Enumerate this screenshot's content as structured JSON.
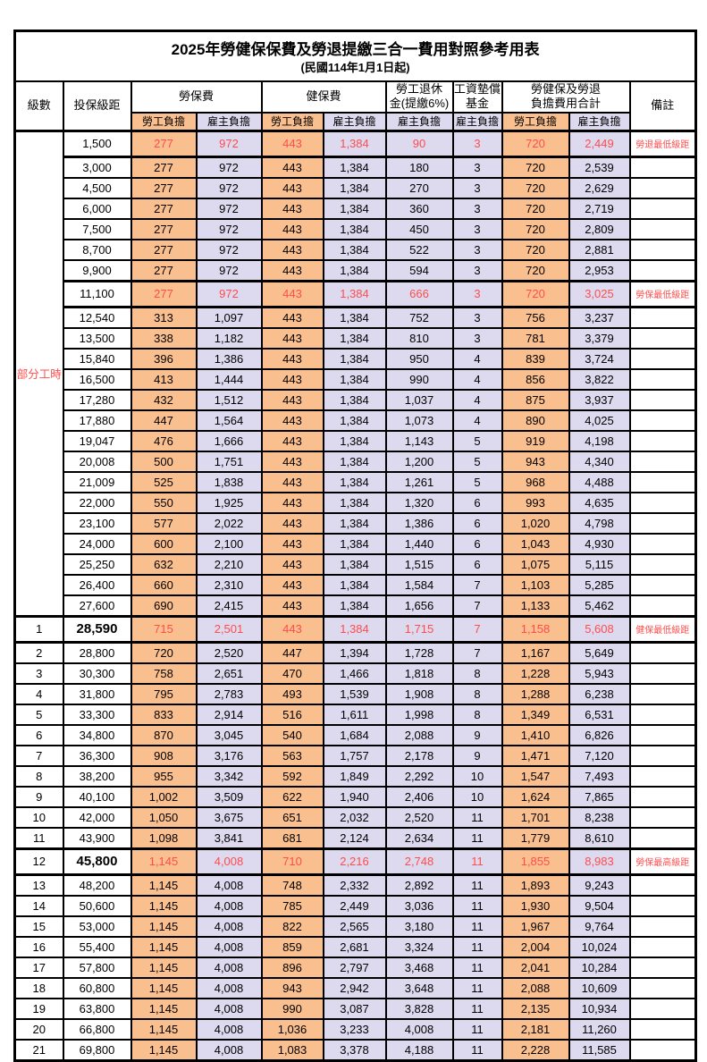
{
  "title": "2025年勞健保保費及勞退提繳三合一費用對照參考用表",
  "subtitle": "(民國114年1月1日起)",
  "header": {
    "level": "級數",
    "bracket": "投保級距",
    "labor_fee": "勞保費",
    "health_fee": "健保費",
    "pension_line1": "勞工退休",
    "pension_line2": "金(提繳6%)",
    "wage_fund_line1": "工資墊償",
    "wage_fund_line2": "基金",
    "total_line1": "勞健保及勞退",
    "total_line2": "負擔費用合計",
    "remark": "備註",
    "employee_burden": "勞工負擔",
    "employer_burden": "雇主負擔"
  },
  "part_time_label": "部分工時",
  "part_time_rowspan": 23,
  "colors": {
    "employee_bg": "#FABF8F",
    "employer_bg": "#DDD9EE",
    "highlight_text": "#FF4D4D",
    "border": "#000000"
  },
  "rows": [
    {
      "level": "",
      "bracket": "1,500",
      "l_emp": "277",
      "l_er": "972",
      "h_emp": "443",
      "h_er": "1,384",
      "pension": "90",
      "fund": "3",
      "t_emp": "720",
      "t_er": "2,449",
      "remark": "勞退最低級距",
      "hl": true,
      "bold": false
    },
    {
      "level": "",
      "bracket": "3,000",
      "l_emp": "277",
      "l_er": "972",
      "h_emp": "443",
      "h_er": "1,384",
      "pension": "180",
      "fund": "3",
      "t_emp": "720",
      "t_er": "2,539",
      "remark": "",
      "hl": false,
      "bold": false
    },
    {
      "level": "",
      "bracket": "4,500",
      "l_emp": "277",
      "l_er": "972",
      "h_emp": "443",
      "h_er": "1,384",
      "pension": "270",
      "fund": "3",
      "t_emp": "720",
      "t_er": "2,629",
      "remark": "",
      "hl": false,
      "bold": false
    },
    {
      "level": "",
      "bracket": "6,000",
      "l_emp": "277",
      "l_er": "972",
      "h_emp": "443",
      "h_er": "1,384",
      "pension": "360",
      "fund": "3",
      "t_emp": "720",
      "t_er": "2,719",
      "remark": "",
      "hl": false,
      "bold": false
    },
    {
      "level": "",
      "bracket": "7,500",
      "l_emp": "277",
      "l_er": "972",
      "h_emp": "443",
      "h_er": "1,384",
      "pension": "450",
      "fund": "3",
      "t_emp": "720",
      "t_er": "2,809",
      "remark": "",
      "hl": false,
      "bold": false
    },
    {
      "level": "",
      "bracket": "8,700",
      "l_emp": "277",
      "l_er": "972",
      "h_emp": "443",
      "h_er": "1,384",
      "pension": "522",
      "fund": "3",
      "t_emp": "720",
      "t_er": "2,881",
      "remark": "",
      "hl": false,
      "bold": false
    },
    {
      "level": "",
      "bracket": "9,900",
      "l_emp": "277",
      "l_er": "972",
      "h_emp": "443",
      "h_er": "1,384",
      "pension": "594",
      "fund": "3",
      "t_emp": "720",
      "t_er": "2,953",
      "remark": "",
      "hl": false,
      "bold": false
    },
    {
      "level": "",
      "bracket": "11,100",
      "l_emp": "277",
      "l_er": "972",
      "h_emp": "443",
      "h_er": "1,384",
      "pension": "666",
      "fund": "3",
      "t_emp": "720",
      "t_er": "3,025",
      "remark": "勞保最低級距",
      "hl": true,
      "bold": false
    },
    {
      "level": "",
      "bracket": "12,540",
      "l_emp": "313",
      "l_er": "1,097",
      "h_emp": "443",
      "h_er": "1,384",
      "pension": "752",
      "fund": "3",
      "t_emp": "756",
      "t_er": "3,237",
      "remark": "",
      "hl": false,
      "bold": false
    },
    {
      "level": "",
      "bracket": "13,500",
      "l_emp": "338",
      "l_er": "1,182",
      "h_emp": "443",
      "h_er": "1,384",
      "pension": "810",
      "fund": "3",
      "t_emp": "781",
      "t_er": "3,379",
      "remark": "",
      "hl": false,
      "bold": false
    },
    {
      "level": "",
      "bracket": "15,840",
      "l_emp": "396",
      "l_er": "1,386",
      "h_emp": "443",
      "h_er": "1,384",
      "pension": "950",
      "fund": "4",
      "t_emp": "839",
      "t_er": "3,724",
      "remark": "",
      "hl": false,
      "bold": false
    },
    {
      "level": "",
      "bracket": "16,500",
      "l_emp": "413",
      "l_er": "1,444",
      "h_emp": "443",
      "h_er": "1,384",
      "pension": "990",
      "fund": "4",
      "t_emp": "856",
      "t_er": "3,822",
      "remark": "",
      "hl": false,
      "bold": false
    },
    {
      "level": "",
      "bracket": "17,280",
      "l_emp": "432",
      "l_er": "1,512",
      "h_emp": "443",
      "h_er": "1,384",
      "pension": "1,037",
      "fund": "4",
      "t_emp": "875",
      "t_er": "3,937",
      "remark": "",
      "hl": false,
      "bold": false
    },
    {
      "level": "",
      "bracket": "17,880",
      "l_emp": "447",
      "l_er": "1,564",
      "h_emp": "443",
      "h_er": "1,384",
      "pension": "1,073",
      "fund": "4",
      "t_emp": "890",
      "t_er": "4,025",
      "remark": "",
      "hl": false,
      "bold": false
    },
    {
      "level": "",
      "bracket": "19,047",
      "l_emp": "476",
      "l_er": "1,666",
      "h_emp": "443",
      "h_er": "1,384",
      "pension": "1,143",
      "fund": "5",
      "t_emp": "919",
      "t_er": "4,198",
      "remark": "",
      "hl": false,
      "bold": false
    },
    {
      "level": "",
      "bracket": "20,008",
      "l_emp": "500",
      "l_er": "1,751",
      "h_emp": "443",
      "h_er": "1,384",
      "pension": "1,200",
      "fund": "5",
      "t_emp": "943",
      "t_er": "4,340",
      "remark": "",
      "hl": false,
      "bold": false
    },
    {
      "level": "",
      "bracket": "21,009",
      "l_emp": "525",
      "l_er": "1,838",
      "h_emp": "443",
      "h_er": "1,384",
      "pension": "1,261",
      "fund": "5",
      "t_emp": "968",
      "t_er": "4,488",
      "remark": "",
      "hl": false,
      "bold": false
    },
    {
      "level": "",
      "bracket": "22,000",
      "l_emp": "550",
      "l_er": "1,925",
      "h_emp": "443",
      "h_er": "1,384",
      "pension": "1,320",
      "fund": "6",
      "t_emp": "993",
      "t_er": "4,635",
      "remark": "",
      "hl": false,
      "bold": false
    },
    {
      "level": "",
      "bracket": "23,100",
      "l_emp": "577",
      "l_er": "2,022",
      "h_emp": "443",
      "h_er": "1,384",
      "pension": "1,386",
      "fund": "6",
      "t_emp": "1,020",
      "t_er": "4,798",
      "remark": "",
      "hl": false,
      "bold": false
    },
    {
      "level": "",
      "bracket": "24,000",
      "l_emp": "600",
      "l_er": "2,100",
      "h_emp": "443",
      "h_er": "1,384",
      "pension": "1,440",
      "fund": "6",
      "t_emp": "1,043",
      "t_er": "4,930",
      "remark": "",
      "hl": false,
      "bold": false
    },
    {
      "level": "",
      "bracket": "25,250",
      "l_emp": "632",
      "l_er": "2,210",
      "h_emp": "443",
      "h_er": "1,384",
      "pension": "1,515",
      "fund": "6",
      "t_emp": "1,075",
      "t_er": "5,115",
      "remark": "",
      "hl": false,
      "bold": false
    },
    {
      "level": "",
      "bracket": "26,400",
      "l_emp": "660",
      "l_er": "2,310",
      "h_emp": "443",
      "h_er": "1,384",
      "pension": "1,584",
      "fund": "7",
      "t_emp": "1,103",
      "t_er": "5,285",
      "remark": "",
      "hl": false,
      "bold": false
    },
    {
      "level": "",
      "bracket": "27,600",
      "l_emp": "690",
      "l_er": "2,415",
      "h_emp": "443",
      "h_er": "1,384",
      "pension": "1,656",
      "fund": "7",
      "t_emp": "1,133",
      "t_er": "5,462",
      "remark": "",
      "hl": false,
      "bold": false
    },
    {
      "level": "1",
      "bracket": "28,590",
      "l_emp": "715",
      "l_er": "2,501",
      "h_emp": "443",
      "h_er": "1,384",
      "pension": "1,715",
      "fund": "7",
      "t_emp": "1,158",
      "t_er": "5,608",
      "remark": "健保最低級距",
      "hl": true,
      "bold": true
    },
    {
      "level": "2",
      "bracket": "28,800",
      "l_emp": "720",
      "l_er": "2,520",
      "h_emp": "447",
      "h_er": "1,394",
      "pension": "1,728",
      "fund": "7",
      "t_emp": "1,167",
      "t_er": "5,649",
      "remark": "",
      "hl": false,
      "bold": false
    },
    {
      "level": "3",
      "bracket": "30,300",
      "l_emp": "758",
      "l_er": "2,651",
      "h_emp": "470",
      "h_er": "1,466",
      "pension": "1,818",
      "fund": "8",
      "t_emp": "1,228",
      "t_er": "5,943",
      "remark": "",
      "hl": false,
      "bold": false
    },
    {
      "level": "4",
      "bracket": "31,800",
      "l_emp": "795",
      "l_er": "2,783",
      "h_emp": "493",
      "h_er": "1,539",
      "pension": "1,908",
      "fund": "8",
      "t_emp": "1,288",
      "t_er": "6,238",
      "remark": "",
      "hl": false,
      "bold": false
    },
    {
      "level": "5",
      "bracket": "33,300",
      "l_emp": "833",
      "l_er": "2,914",
      "h_emp": "516",
      "h_er": "1,611",
      "pension": "1,998",
      "fund": "8",
      "t_emp": "1,349",
      "t_er": "6,531",
      "remark": "",
      "hl": false,
      "bold": false
    },
    {
      "level": "6",
      "bracket": "34,800",
      "l_emp": "870",
      "l_er": "3,045",
      "h_emp": "540",
      "h_er": "1,684",
      "pension": "2,088",
      "fund": "9",
      "t_emp": "1,410",
      "t_er": "6,826",
      "remark": "",
      "hl": false,
      "bold": false
    },
    {
      "level": "7",
      "bracket": "36,300",
      "l_emp": "908",
      "l_er": "3,176",
      "h_emp": "563",
      "h_er": "1,757",
      "pension": "2,178",
      "fund": "9",
      "t_emp": "1,471",
      "t_er": "7,120",
      "remark": "",
      "hl": false,
      "bold": false
    },
    {
      "level": "8",
      "bracket": "38,200",
      "l_emp": "955",
      "l_er": "3,342",
      "h_emp": "592",
      "h_er": "1,849",
      "pension": "2,292",
      "fund": "10",
      "t_emp": "1,547",
      "t_er": "7,493",
      "remark": "",
      "hl": false,
      "bold": false
    },
    {
      "level": "9",
      "bracket": "40,100",
      "l_emp": "1,002",
      "l_er": "3,509",
      "h_emp": "622",
      "h_er": "1,940",
      "pension": "2,406",
      "fund": "10",
      "t_emp": "1,624",
      "t_er": "7,865",
      "remark": "",
      "hl": false,
      "bold": false
    },
    {
      "level": "10",
      "bracket": "42,000",
      "l_emp": "1,050",
      "l_er": "3,675",
      "h_emp": "651",
      "h_er": "2,032",
      "pension": "2,520",
      "fund": "11",
      "t_emp": "1,701",
      "t_er": "8,238",
      "remark": "",
      "hl": false,
      "bold": false
    },
    {
      "level": "11",
      "bracket": "43,900",
      "l_emp": "1,098",
      "l_er": "3,841",
      "h_emp": "681",
      "h_er": "2,124",
      "pension": "2,634",
      "fund": "11",
      "t_emp": "1,779",
      "t_er": "8,610",
      "remark": "",
      "hl": false,
      "bold": false
    },
    {
      "level": "12",
      "bracket": "45,800",
      "l_emp": "1,145",
      "l_er": "4,008",
      "h_emp": "710",
      "h_er": "2,216",
      "pension": "2,748",
      "fund": "11",
      "t_emp": "1,855",
      "t_er": "8,983",
      "remark": "勞保最高級距",
      "hl": true,
      "bold": true
    },
    {
      "level": "13",
      "bracket": "48,200",
      "l_emp": "1,145",
      "l_er": "4,008",
      "h_emp": "748",
      "h_er": "2,332",
      "pension": "2,892",
      "fund": "11",
      "t_emp": "1,893",
      "t_er": "9,243",
      "remark": "",
      "hl": false,
      "bold": false
    },
    {
      "level": "14",
      "bracket": "50,600",
      "l_emp": "1,145",
      "l_er": "4,008",
      "h_emp": "785",
      "h_er": "2,449",
      "pension": "3,036",
      "fund": "11",
      "t_emp": "1,930",
      "t_er": "9,504",
      "remark": "",
      "hl": false,
      "bold": false
    },
    {
      "level": "15",
      "bracket": "53,000",
      "l_emp": "1,145",
      "l_er": "4,008",
      "h_emp": "822",
      "h_er": "2,565",
      "pension": "3,180",
      "fund": "11",
      "t_emp": "1,967",
      "t_er": "9,764",
      "remark": "",
      "hl": false,
      "bold": false
    },
    {
      "level": "16",
      "bracket": "55,400",
      "l_emp": "1,145",
      "l_er": "4,008",
      "h_emp": "859",
      "h_er": "2,681",
      "pension": "3,324",
      "fund": "11",
      "t_emp": "2,004",
      "t_er": "10,024",
      "remark": "",
      "hl": false,
      "bold": false
    },
    {
      "level": "17",
      "bracket": "57,800",
      "l_emp": "1,145",
      "l_er": "4,008",
      "h_emp": "896",
      "h_er": "2,797",
      "pension": "3,468",
      "fund": "11",
      "t_emp": "2,041",
      "t_er": "10,284",
      "remark": "",
      "hl": false,
      "bold": false
    },
    {
      "level": "18",
      "bracket": "60,800",
      "l_emp": "1,145",
      "l_er": "4,008",
      "h_emp": "943",
      "h_er": "2,942",
      "pension": "3,648",
      "fund": "11",
      "t_emp": "2,088",
      "t_er": "10,609",
      "remark": "",
      "hl": false,
      "bold": false
    },
    {
      "level": "19",
      "bracket": "63,800",
      "l_emp": "1,145",
      "l_er": "4,008",
      "h_emp": "990",
      "h_er": "3,087",
      "pension": "3,828",
      "fund": "11",
      "t_emp": "2,135",
      "t_er": "10,934",
      "remark": "",
      "hl": false,
      "bold": false
    },
    {
      "level": "20",
      "bracket": "66,800",
      "l_emp": "1,145",
      "l_er": "4,008",
      "h_emp": "1,036",
      "h_er": "3,233",
      "pension": "4,008",
      "fund": "11",
      "t_emp": "2,181",
      "t_er": "11,260",
      "remark": "",
      "hl": false,
      "bold": false
    },
    {
      "level": "21",
      "bracket": "69,800",
      "l_emp": "1,145",
      "l_er": "4,008",
      "h_emp": "1,083",
      "h_er": "3,378",
      "pension": "4,188",
      "fund": "11",
      "t_emp": "2,228",
      "t_er": "11,585",
      "remark": "",
      "hl": false,
      "bold": false
    }
  ]
}
